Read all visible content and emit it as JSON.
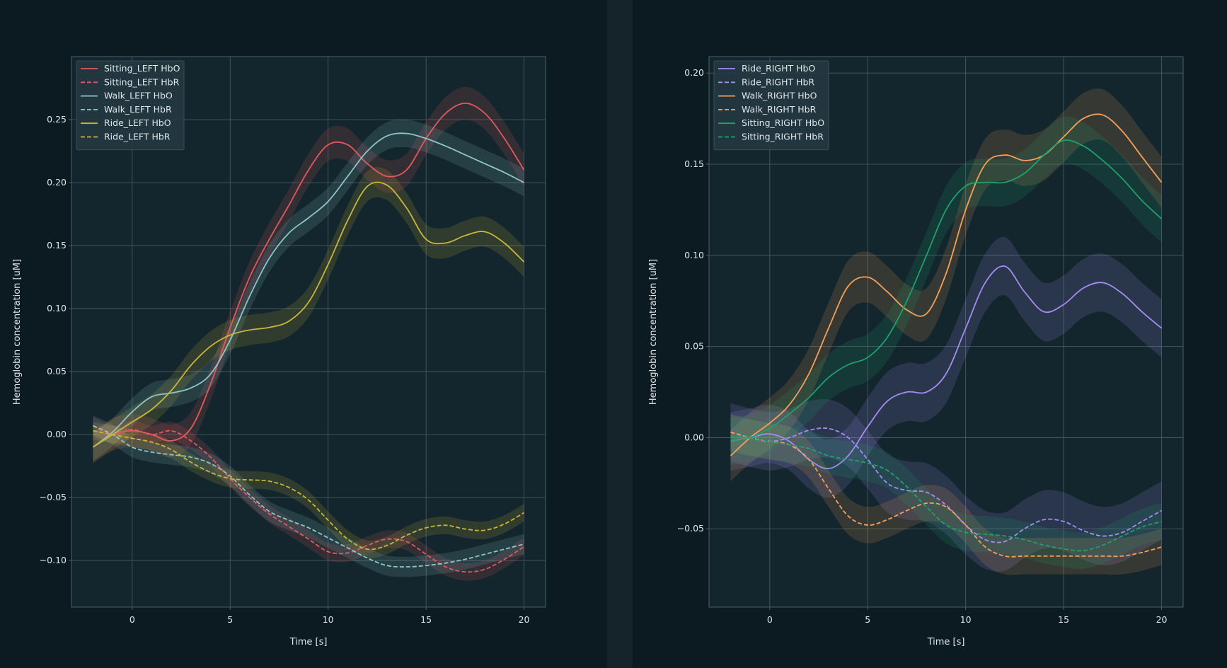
{
  "colors": {
    "background": "#0c1b22",
    "plot_area": "#13252d",
    "grid": "#4e5f66",
    "text": "#dfe6ea",
    "legend_bg": "#243840"
  },
  "chart_data": [
    {
      "type": "line",
      "xlabel": "Time [s]",
      "ylabel": "Hemoglobin concentration [uM]",
      "xlim": [
        -3.1,
        21.1
      ],
      "ylim": [
        -0.137,
        0.3
      ],
      "xticks": [
        0,
        5,
        10,
        15,
        20
      ],
      "xtick_labels": [
        "0",
        "5",
        "10",
        "15",
        "20"
      ],
      "yticks": [
        -0.1,
        -0.05,
        0.0,
        0.05,
        0.1,
        0.15,
        0.2,
        0.25
      ],
      "ytick_labels": [
        "−0.10",
        "−0.05",
        "0.00",
        "0.05",
        "0.10",
        "0.15",
        "0.20",
        "0.25"
      ],
      "grid": true,
      "legend_position": "top-left",
      "shaded_bands": true,
      "series": [
        {
          "name": "Sitting_LEFT HbO",
          "color": "#e05a5f",
          "dash": "solid",
          "band": 0.013,
          "x": [
            -2,
            -1,
            0,
            1,
            2,
            3,
            4,
            5,
            6,
            7,
            8,
            9,
            10,
            11,
            12,
            13,
            14,
            15,
            16,
            17,
            18,
            19,
            20
          ],
          "y": [
            -0.01,
            0.0,
            0.003,
            0.0,
            -0.005,
            0.005,
            0.04,
            0.085,
            0.125,
            0.155,
            0.182,
            0.21,
            0.23,
            0.23,
            0.215,
            0.205,
            0.21,
            0.235,
            0.255,
            0.263,
            0.255,
            0.235,
            0.21
          ]
        },
        {
          "name": "Sitting_LEFT HbR",
          "color": "#e05a5f",
          "dash": "dashed",
          "band": 0.007,
          "x": [
            -2,
            -1,
            0,
            1,
            2,
            3,
            4,
            5,
            6,
            7,
            8,
            9,
            10,
            11,
            12,
            13,
            14,
            15,
            16,
            17,
            18,
            19,
            20
          ],
          "y": [
            0.007,
            0.0,
            0.004,
            0.0,
            0.003,
            -0.005,
            -0.018,
            -0.035,
            -0.05,
            -0.063,
            -0.073,
            -0.083,
            -0.093,
            -0.094,
            -0.088,
            -0.083,
            -0.085,
            -0.095,
            -0.105,
            -0.109,
            -0.107,
            -0.099,
            -0.089
          ]
        },
        {
          "name": "Walk_LEFT HbO",
          "color": "#8ec5c7",
          "dash": "solid",
          "band": 0.011,
          "x": [
            -2,
            -1,
            0,
            1,
            2,
            3,
            4,
            5,
            6,
            7,
            8,
            9,
            10,
            11,
            12,
            13,
            14,
            15,
            16,
            17,
            18,
            19,
            20
          ],
          "y": [
            -0.01,
            0.002,
            0.018,
            0.03,
            0.033,
            0.037,
            0.048,
            0.075,
            0.11,
            0.14,
            0.16,
            0.172,
            0.185,
            0.205,
            0.225,
            0.237,
            0.239,
            0.235,
            0.229,
            0.222,
            0.215,
            0.208,
            0.2
          ]
        },
        {
          "name": "Walk_LEFT HbR",
          "color": "#8ec5c7",
          "dash": "dashed",
          "band": 0.008,
          "x": [
            -2,
            -1,
            0,
            1,
            2,
            3,
            4,
            5,
            6,
            7,
            8,
            9,
            10,
            11,
            12,
            13,
            14,
            15,
            16,
            17,
            18,
            19,
            20
          ],
          "y": [
            0.007,
            0.0,
            -0.01,
            -0.014,
            -0.016,
            -0.018,
            -0.023,
            -0.033,
            -0.048,
            -0.061,
            -0.068,
            -0.074,
            -0.082,
            -0.09,
            -0.098,
            -0.104,
            -0.105,
            -0.104,
            -0.102,
            -0.099,
            -0.095,
            -0.091,
            -0.087
          ]
        },
        {
          "name": "Ride_LEFT HbO",
          "color": "#c9b63a",
          "dash": "solid",
          "band": 0.012,
          "x": [
            -2,
            -1,
            0,
            1,
            2,
            3,
            4,
            5,
            6,
            7,
            8,
            9,
            10,
            11,
            12,
            13,
            14,
            15,
            16,
            17,
            18,
            19,
            20
          ],
          "y": [
            -0.01,
            0.0,
            0.01,
            0.02,
            0.035,
            0.055,
            0.07,
            0.079,
            0.083,
            0.085,
            0.09,
            0.105,
            0.135,
            0.17,
            0.197,
            0.198,
            0.18,
            0.155,
            0.152,
            0.158,
            0.161,
            0.152,
            0.137
          ]
        },
        {
          "name": "Ride_LEFT HbR",
          "color": "#c9b63a",
          "dash": "dashed",
          "band": 0.007,
          "x": [
            -2,
            -1,
            0,
            1,
            2,
            3,
            4,
            5,
            6,
            7,
            8,
            9,
            10,
            11,
            12,
            13,
            14,
            15,
            16,
            17,
            18,
            19,
            20
          ],
          "y": [
            0.003,
            0.0,
            -0.003,
            -0.006,
            -0.012,
            -0.022,
            -0.03,
            -0.035,
            -0.036,
            -0.037,
            -0.042,
            -0.052,
            -0.068,
            -0.083,
            -0.091,
            -0.088,
            -0.08,
            -0.074,
            -0.072,
            -0.075,
            -0.076,
            -0.071,
            -0.062
          ]
        }
      ]
    },
    {
      "type": "line",
      "xlabel": "Time [s]",
      "ylabel": "Hemoglobin concentration [uM]",
      "xlim": [
        -3.1,
        21.1
      ],
      "ylim": [
        -0.093,
        0.209
      ],
      "xticks": [
        0,
        5,
        10,
        15,
        20
      ],
      "xtick_labels": [
        "0",
        "5",
        "10",
        "15",
        "20"
      ],
      "yticks": [
        -0.05,
        0.0,
        0.05,
        0.1,
        0.15,
        0.2
      ],
      "ytick_labels": [
        "−0.05",
        "0.00",
        "0.05",
        "0.10",
        "0.15",
        "0.20"
      ],
      "grid": true,
      "legend_position": "top-left",
      "shaded_bands": true,
      "series": [
        {
          "name": "Ride_RIGHT HbO",
          "color": "#a48cf0",
          "dash": "solid",
          "band": 0.016,
          "x": [
            -2,
            -1,
            0,
            1,
            2,
            3,
            4,
            5,
            6,
            7,
            8,
            9,
            10,
            11,
            12,
            13,
            14,
            15,
            16,
            17,
            18,
            19,
            20
          ],
          "y": [
            -0.002,
            0.0,
            0.002,
            -0.002,
            -0.012,
            -0.017,
            -0.01,
            0.006,
            0.02,
            0.025,
            0.025,
            0.035,
            0.06,
            0.085,
            0.094,
            0.08,
            0.069,
            0.073,
            0.082,
            0.085,
            0.079,
            0.069,
            0.06
          ]
        },
        {
          "name": "Ride_RIGHT HbR",
          "color": "#a48cf0",
          "dash": "dashed",
          "band": 0.016,
          "x": [
            -2,
            -1,
            0,
            1,
            2,
            3,
            4,
            5,
            6,
            7,
            8,
            9,
            10,
            11,
            12,
            13,
            14,
            15,
            16,
            17,
            18,
            19,
            20
          ],
          "y": [
            0.003,
            0.0,
            -0.002,
            0.0,
            0.004,
            0.005,
            0.0,
            -0.012,
            -0.025,
            -0.029,
            -0.03,
            -0.037,
            -0.048,
            -0.056,
            -0.057,
            -0.05,
            -0.045,
            -0.046,
            -0.051,
            -0.054,
            -0.052,
            -0.046,
            -0.04
          ]
        },
        {
          "name": "Walk_RIGHT HbO",
          "color": "#f5a05a",
          "dash": "solid",
          "band": 0.014,
          "x": [
            -2,
            -1,
            0,
            1,
            2,
            3,
            4,
            5,
            6,
            7,
            8,
            9,
            10,
            11,
            12,
            13,
            14,
            15,
            16,
            17,
            18,
            19,
            20
          ],
          "y": [
            -0.01,
            0.0,
            0.008,
            0.018,
            0.035,
            0.06,
            0.083,
            0.088,
            0.08,
            0.07,
            0.068,
            0.09,
            0.125,
            0.15,
            0.155,
            0.152,
            0.155,
            0.165,
            0.175,
            0.177,
            0.168,
            0.154,
            0.14
          ]
        },
        {
          "name": "Walk_RIGHT HbR",
          "color": "#f5a05a",
          "dash": "dashed",
          "band": 0.01,
          "x": [
            -2,
            -1,
            0,
            1,
            2,
            3,
            4,
            5,
            6,
            7,
            8,
            9,
            10,
            11,
            12,
            13,
            14,
            15,
            16,
            17,
            18,
            19,
            20
          ],
          "y": [
            0.003,
            0.0,
            -0.002,
            -0.004,
            -0.012,
            -0.028,
            -0.043,
            -0.048,
            -0.045,
            -0.04,
            -0.036,
            -0.038,
            -0.048,
            -0.06,
            -0.065,
            -0.065,
            -0.065,
            -0.065,
            -0.065,
            -0.065,
            -0.065,
            -0.063,
            -0.06
          ]
        },
        {
          "name": "Sitting_RIGHT HbO",
          "color": "#1fa06c",
          "dash": "solid",
          "band": 0.013,
          "x": [
            -2,
            -1,
            0,
            1,
            2,
            3,
            4,
            5,
            6,
            7,
            8,
            9,
            10,
            11,
            12,
            13,
            14,
            15,
            16,
            17,
            18,
            19,
            20
          ],
          "y": [
            -0.002,
            0.0,
            0.005,
            0.013,
            0.022,
            0.033,
            0.04,
            0.044,
            0.055,
            0.075,
            0.1,
            0.125,
            0.138,
            0.14,
            0.14,
            0.145,
            0.155,
            0.163,
            0.16,
            0.152,
            0.142,
            0.13,
            0.12
          ]
        },
        {
          "name": "Sitting_RIGHT HbR",
          "color": "#1fa06c",
          "dash": "dashed",
          "band": 0.01,
          "x": [
            -2,
            -1,
            0,
            1,
            2,
            3,
            4,
            5,
            6,
            7,
            8,
            9,
            10,
            11,
            12,
            13,
            14,
            15,
            16,
            17,
            18,
            19,
            20
          ],
          "y": [
            0.001,
            0.0,
            -0.002,
            -0.004,
            -0.006,
            -0.01,
            -0.012,
            -0.014,
            -0.018,
            -0.027,
            -0.038,
            -0.048,
            -0.052,
            -0.053,
            -0.054,
            -0.056,
            -0.059,
            -0.061,
            -0.062,
            -0.059,
            -0.054,
            -0.049,
            -0.046
          ]
        }
      ]
    }
  ]
}
